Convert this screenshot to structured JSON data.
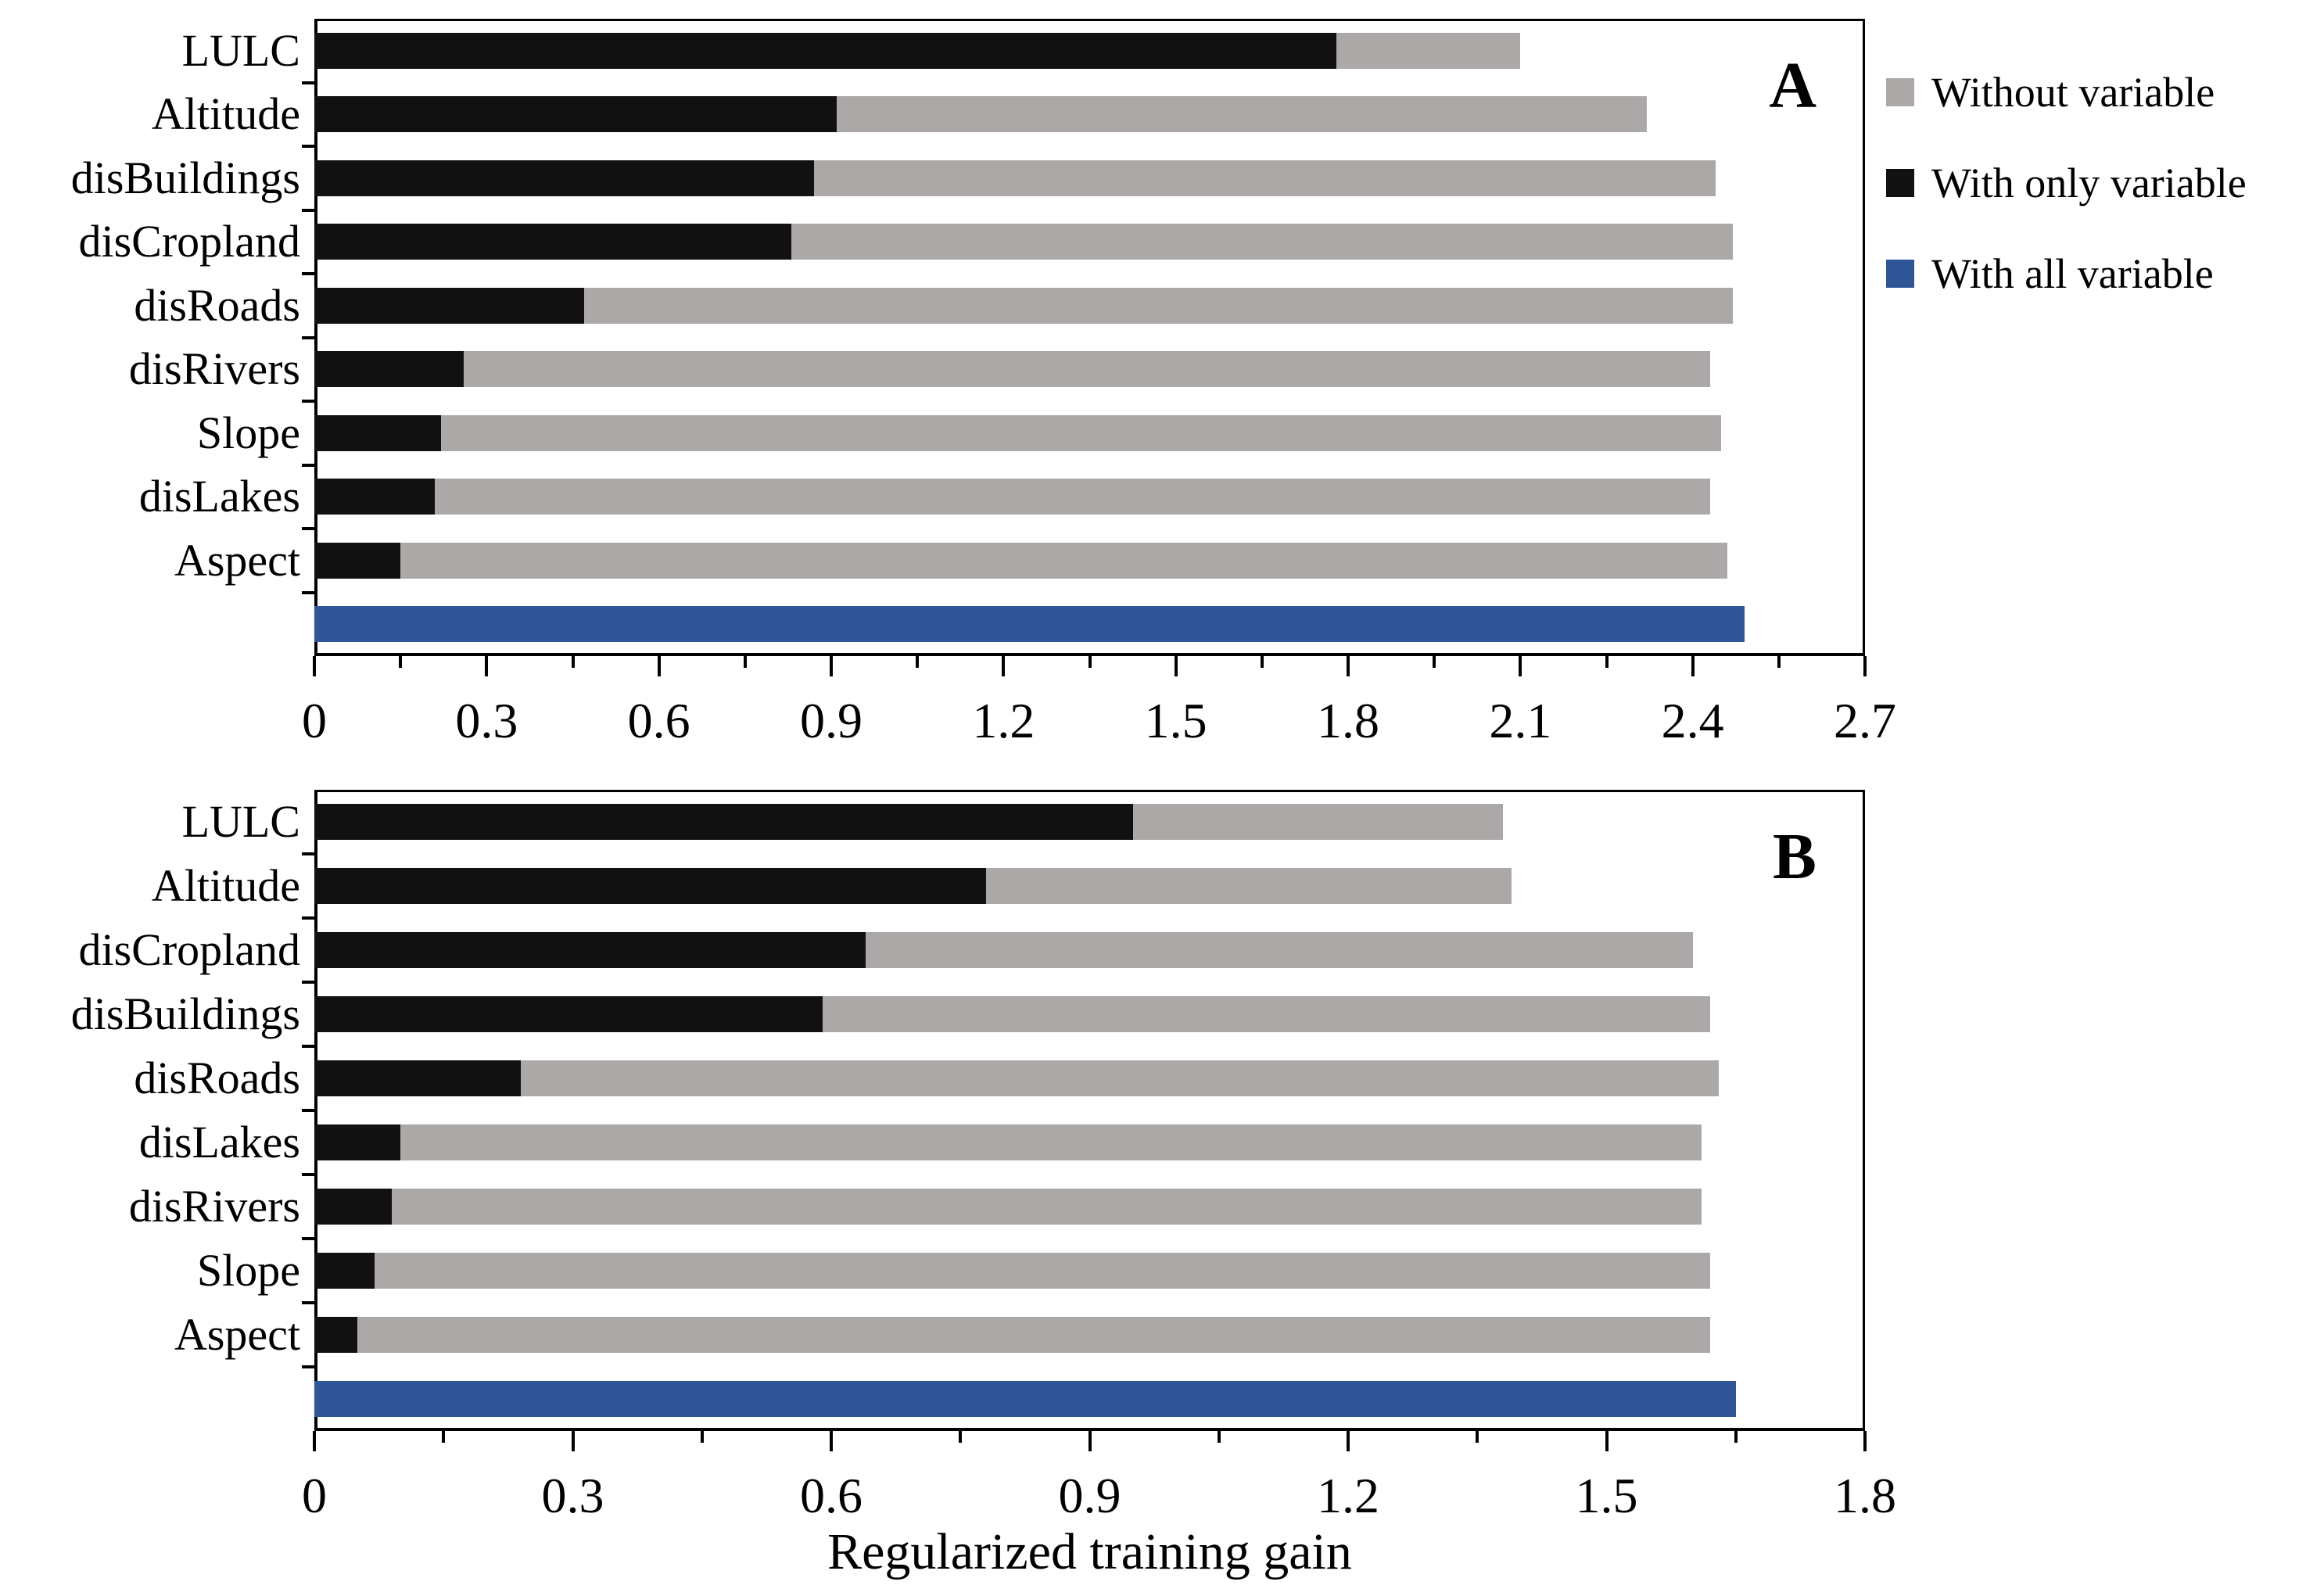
{
  "figure": {
    "background": "#ffffff",
    "xlabel": "Regularized training gain",
    "colors": {
      "without": "#aca8a7",
      "with_only": "#111111",
      "with_all": "#2f5597",
      "axis": "#000000"
    },
    "legend": {
      "position": "top-right",
      "items": [
        {
          "label": "Without variable",
          "series": "without"
        },
        {
          "label": "With only variable",
          "series": "with_only"
        },
        {
          "label": "With all variable",
          "series": "with_all"
        }
      ]
    }
  },
  "chart_data": [
    {
      "type": "bar",
      "orientation": "horizontal",
      "panel_label": "A",
      "categories": [
        "LULC",
        "Altitude",
        "disBuildings",
        "disCropland",
        "disRoads",
        "disRivers",
        "Slope",
        "disLakes",
        "Aspect"
      ],
      "series": [
        {
          "name": "Without variable",
          "values": [
            2.1,
            2.32,
            2.44,
            2.47,
            2.47,
            2.43,
            2.45,
            2.43,
            2.46
          ]
        },
        {
          "name": "With only variable",
          "values": [
            1.78,
            0.91,
            0.87,
            0.83,
            0.47,
            0.26,
            0.22,
            0.21,
            0.15
          ]
        }
      ],
      "all_variable_row": {
        "name": "With all variable",
        "value": 2.49
      },
      "xlim": [
        0,
        2.7
      ],
      "xticks": [
        0,
        0.3,
        0.6,
        0.9,
        1.2,
        1.5,
        1.8,
        2.1,
        2.4,
        2.7
      ],
      "xtick_labels": [
        "0",
        "0.3",
        "0.6",
        "0.9",
        "1.2",
        "1.5",
        "1.8",
        "2.1",
        "2.4",
        "2.7"
      ],
      "minor_tick_interval": 0.15,
      "grid": false
    },
    {
      "type": "bar",
      "orientation": "horizontal",
      "panel_label": "B",
      "categories": [
        "LULC",
        "Altitude",
        "disCropland",
        "disBuildings",
        "disRoads",
        "disLakes",
        "disRivers",
        "Slope",
        "Aspect"
      ],
      "series": [
        {
          "name": "Without variable",
          "values": [
            1.38,
            1.39,
            1.6,
            1.62,
            1.63,
            1.61,
            1.61,
            1.62,
            1.62
          ]
        },
        {
          "name": "With only variable",
          "values": [
            0.95,
            0.78,
            0.64,
            0.59,
            0.24,
            0.1,
            0.09,
            0.07,
            0.05
          ]
        }
      ],
      "all_variable_row": {
        "name": "With all variable",
        "value": 1.65
      },
      "xlim": [
        0,
        1.8
      ],
      "xticks": [
        0,
        0.3,
        0.6,
        0.9,
        1.2,
        1.5,
        1.8
      ],
      "xtick_labels": [
        "0",
        "0.3",
        "0.6",
        "0.9",
        "1.2",
        "1.5",
        "1.8"
      ],
      "minor_tick_interval": 0.15,
      "grid": false
    }
  ]
}
